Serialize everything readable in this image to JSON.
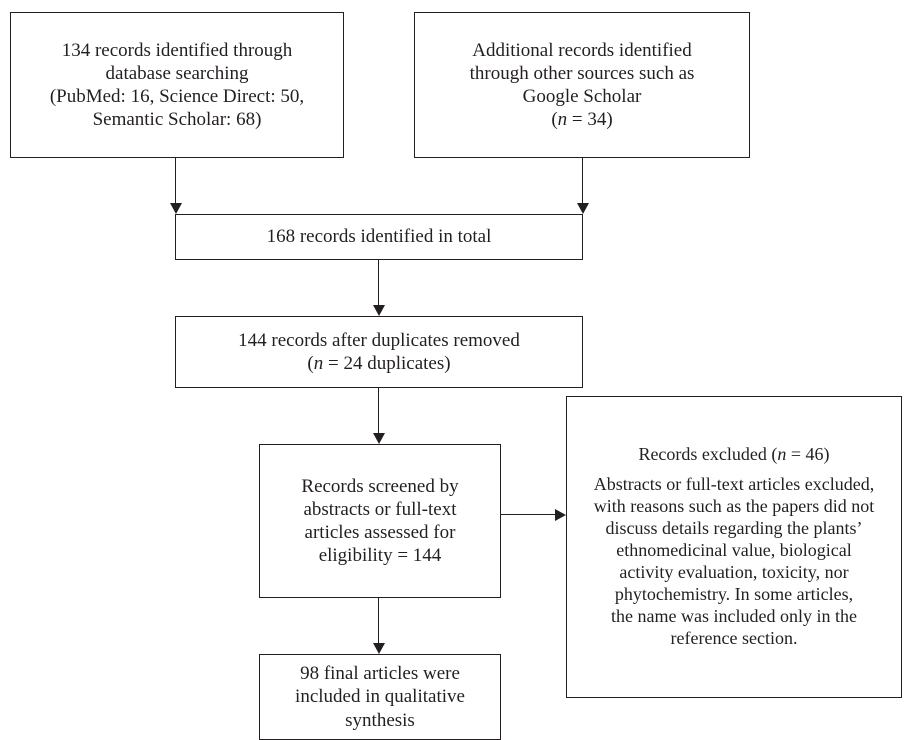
{
  "flowchart": {
    "identified_database": {
      "line1": "134 records identified through",
      "line2": "database searching",
      "line3": "(PubMed: 16, Science Direct: 50,",
      "line4": "Semantic Scholar: 68)"
    },
    "identified_other": {
      "line1": "Additional records identified",
      "line2": "through other sources such as",
      "line3": "Google Scholar",
      "n_prefix": "(",
      "n_symbol": "n",
      "n_suffix": " = 34)"
    },
    "total_identified": {
      "text": "168 records identified in total"
    },
    "duplicates_removed": {
      "line1": "144 records after duplicates removed",
      "n_prefix": "(",
      "n_symbol": "n",
      "n_suffix": " = 24 duplicates)"
    },
    "screened": {
      "line1": "Records screened by",
      "line2": "abstracts or full-text",
      "line3": "articles assessed for",
      "line4": "eligibility = 144"
    },
    "excluded": {
      "title_prefix": "Records excluded (",
      "title_symbol": "n",
      "title_suffix": " = 46)",
      "line1": "Abstracts or full-text articles excluded,",
      "line2": "with reasons such as the papers did not",
      "line3": "discuss details regarding the plants’",
      "line4": "ethnomedicinal value, biological",
      "line5": "activity evaluation, toxicity, nor",
      "line6": "phytochemistry. In some articles,",
      "line7": "the name was included only in the",
      "line8": "reference section."
    },
    "included": {
      "line1": "98 final articles were",
      "line2": "included in qualitative",
      "line3": "synthesis"
    }
  }
}
